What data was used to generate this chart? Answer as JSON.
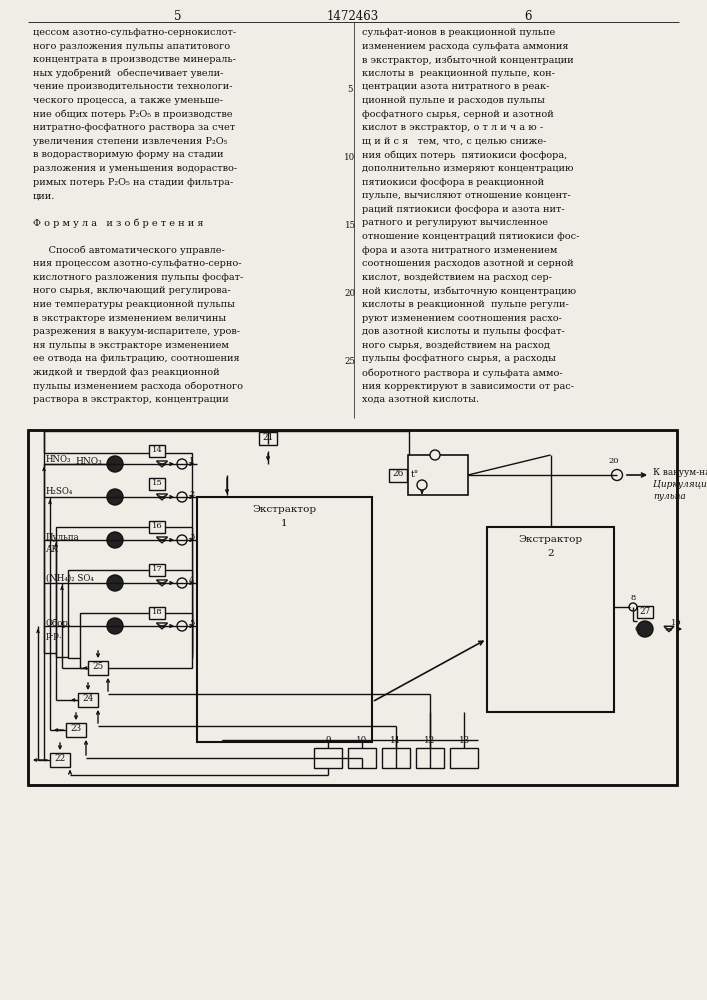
{
  "page_num_left": "5",
  "page_num_center": "1472463",
  "page_num_right": "6",
  "bg_color": "#f0ede6",
  "text_color": "#111111",
  "col_left": [
    "цессом азотно-сульфатно-сернокислот-",
    "ного разложения пульпы апатитового",
    "концентрата в производстве минераль-",
    "ных удобрений  обеспечивает увели-",
    "чение производительности технологи-",
    "ческого процесса, а также уменьше-",
    "ние общих потерь P₂O₅ в производстве",
    "нитратно-фосфатного раствора за счет",
    "увеличения степени извлечения P₂O₅",
    "в водорастворимую форму на стадии",
    "разложения и уменьшения водораство-",
    "римых потерь P₂O₅ на стадии фильтра-",
    "ции.",
    "",
    "Ф о р м у л а   и з о б р е т е н и я",
    "",
    "     Способ автоматического управле-",
    "ния процессом азотно-сульфатно-серно-",
    "кислотного разложения пульпы фосфат-",
    "ного сырья, включающий регулирова-",
    "ние температуры реакционной пульпы",
    "в экстракторе изменением величины",
    "разрежения в вакуум-испарителе, уров-",
    "ня пульпы в экстракторе изменением",
    "ее отвода на фильтрацию, соотношения",
    "жидкой и твердой фаз реакционной",
    "пульпы изменением расхода оборотного",
    "раствора в экстрактор, концентрации"
  ],
  "col_right": [
    "сульфат-ионов в реакционной пульпе",
    "изменением расхода сульфата аммония",
    "в экстрактор, избыточной концентрации",
    "кислоты в  реакционной пульпе, кон-",
    "центрации азота нитратного в реак-",
    "ционной пульпе и расходов пульпы",
    "фосфатного сырья, серной и азотной",
    "кислот в экстрактор, о т л и ч а ю -",
    "щ и й с я   тем, что, с целью сниже-",
    "ния общих потерь  пятиокиси фосфора,",
    "дополнительно измеряют концентрацию",
    "пятиокиси фосфора в реакционной",
    "пульпе, вычисляют отношение концент-",
    "раций пятиокиси фосфора и азота нит-",
    "ратного и регулируют вычисленное",
    "отношение концентраций пятиокиси фос-",
    "фора и азота нитратного изменением",
    "соотношения расходов азотной и серной",
    "кислот, воздействием на расход сер-",
    "ной кислоты, избыточную концентрацию",
    "кислоты в реакционной  пульпе регули-",
    "руют изменением соотношения расхо-",
    "дов азотной кислоты и пульпы фосфат-",
    "ного сырья, воздействием на расход",
    "пульпы фосфатного сырья, а расходы",
    "оборотного раствора и сульфата аммо-",
    "ния корректируют в зависимости от рас-",
    "хода азотной кислоты."
  ]
}
